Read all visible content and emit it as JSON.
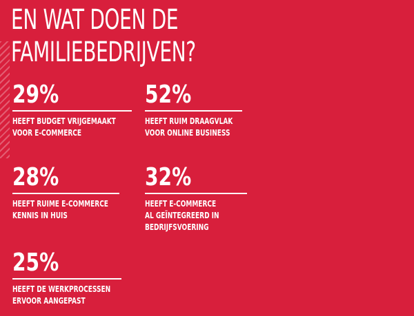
{
  "title": {
    "line1": "EN WAT DOEN DE",
    "line2": "FAMILIEBEDRIJVEN?"
  },
  "stats": [
    {
      "value": "29%",
      "line1": "HEEFT BUDGET VRIJGEMAAKT",
      "line2": "VOOR E-COMMERCE",
      "line3": ""
    },
    {
      "value": "52%",
      "line1": "HEEFT RUIM DRAAGVLAK",
      "line2": "VOOR ONLINE BUSINESS",
      "line3": ""
    },
    {
      "value": "28%",
      "line1": "HEEFT RUIME E-COMMERCE",
      "line2": "KENNIS IN HUIS",
      "line3": ""
    },
    {
      "value": "32%",
      "line1": "HEEFT E-COMMERCE",
      "line2": "AL GEÏNTEGREERD IN",
      "line3": "BEDRIJFSVOERING"
    },
    {
      "value": "25%",
      "line1": "HEEFT DE WERKPROCESSEN",
      "line2": "ERVOOR AANGEPAST",
      "line3": ""
    }
  ],
  "colors": {
    "background": "#d81f3c",
    "text": "#ffffff"
  }
}
